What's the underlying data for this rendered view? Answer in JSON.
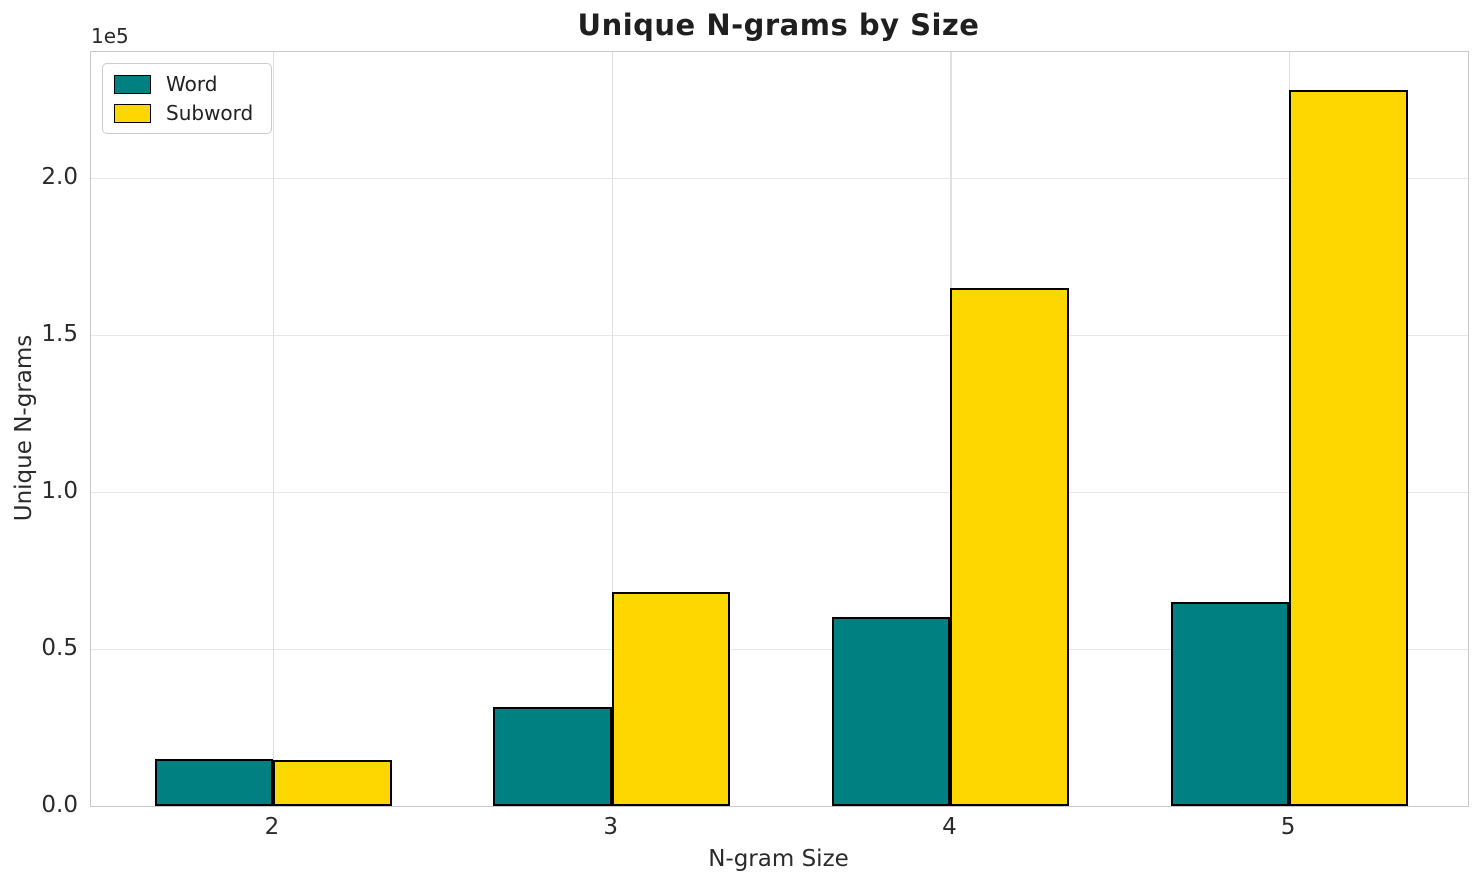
{
  "chart_data": {
    "type": "bar",
    "title": "Unique N-grams by Size",
    "xlabel": "N-gram Size",
    "ylabel": "Unique N-grams",
    "y_offset_label": "1e5",
    "categories": [
      "2",
      "3",
      "4",
      "5"
    ],
    "series": [
      {
        "name": "Word",
        "color": "#008080",
        "values": [
          15000,
          31500,
          60000,
          65000
        ]
      },
      {
        "name": "Subword",
        "color": "#FFD700",
        "values": [
          14700,
          68000,
          165000,
          228000
        ]
      }
    ],
    "ylim": [
      0,
      240000
    ],
    "yticks": {
      "values": [
        0,
        50000,
        100000,
        150000,
        200000
      ],
      "labels": [
        "0.0",
        "0.5",
        "1.0",
        "1.5",
        "2.0"
      ]
    },
    "grid": true,
    "legend_position": "upper left",
    "bar_edge_color": "#000000",
    "colors": {
      "grid": "#e7e7e7",
      "spine": "#c9c9c9",
      "tick_text": "#2b2b2b",
      "title_text": "#1f1f1f"
    }
  }
}
